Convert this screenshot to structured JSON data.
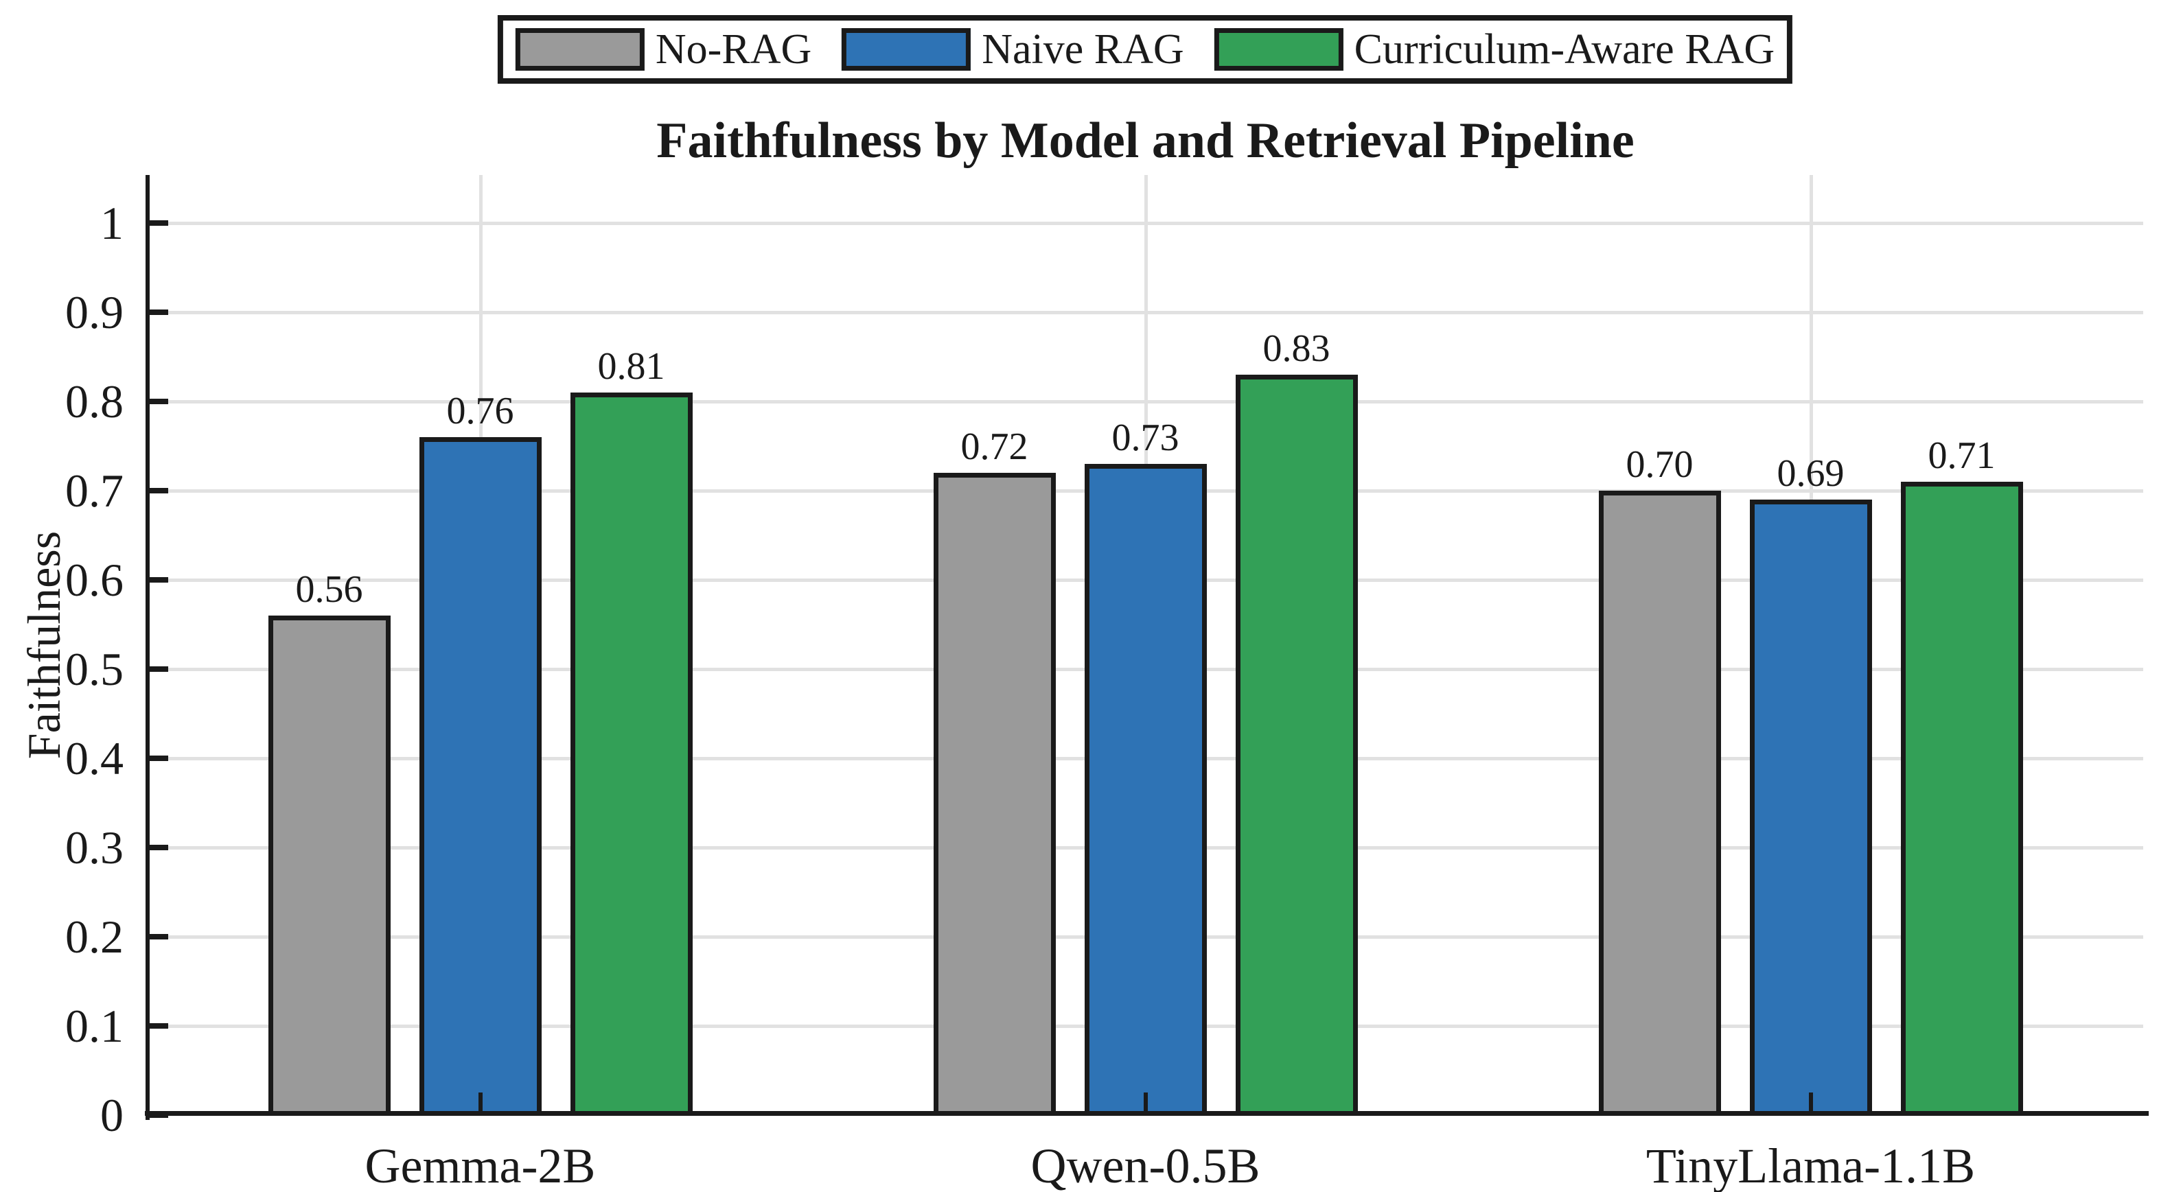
{
  "chart_data": {
    "type": "bar",
    "title": "Faithfulness by Model and Retrieval Pipeline",
    "xlabel": "",
    "ylabel": "Faithfulness",
    "categories": [
      "Gemma-2B",
      "Qwen-0.5B",
      "TinyLlama-1.1B"
    ],
    "series": [
      {
        "name": "No-RAG",
        "color": "#9A9A9A",
        "values": [
          0.56,
          0.72,
          0.7
        ],
        "labels": [
          "0.56",
          "0.72",
          "0.70"
        ]
      },
      {
        "name": "Naive RAG",
        "color": "#2E73B5",
        "values": [
          0.76,
          0.73,
          0.69
        ],
        "labels": [
          "0.76",
          "0.73",
          "0.69"
        ]
      },
      {
        "name": "Curriculum-Aware RAG",
        "color": "#33A057",
        "values": [
          0.81,
          0.83,
          0.71
        ],
        "labels": [
          "0.81",
          "0.83",
          "0.71"
        ]
      }
    ],
    "ylim": [
      0,
      1.05
    ],
    "yticks": [
      0,
      0.1,
      0.2,
      0.3,
      0.4,
      0.5,
      0.6,
      0.7,
      0.8,
      0.9,
      1
    ],
    "ytick_labels": [
      "0",
      "0.1",
      "0.2",
      "0.3",
      "0.4",
      "0.5",
      "0.6",
      "0.7",
      "0.8",
      "0.9",
      "1"
    ],
    "grid": true,
    "legend_position": "top center",
    "bar_edge_color": "#1a1a1a",
    "gridline_color": "#e1e1e1"
  }
}
